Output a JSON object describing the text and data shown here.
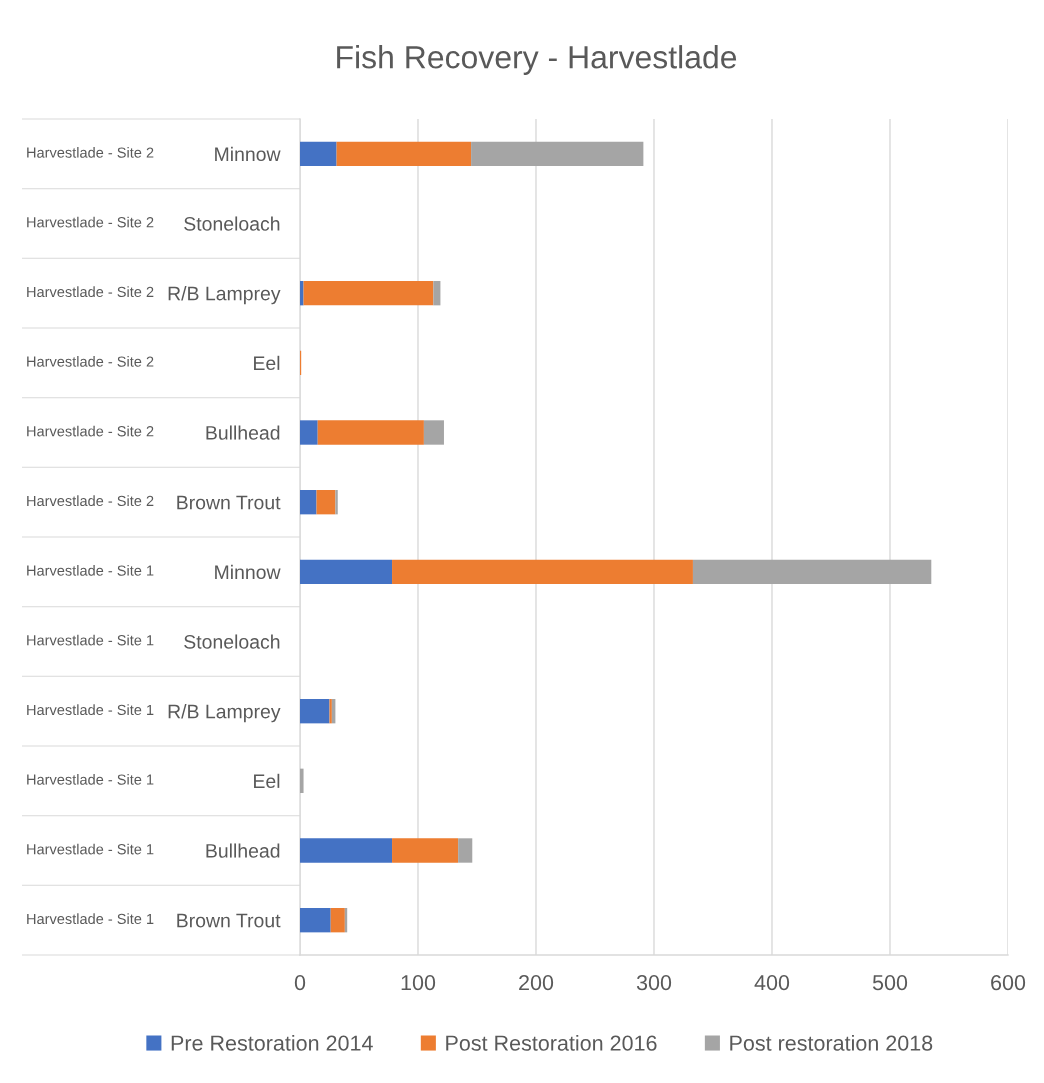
{
  "chart_data": {
    "type": "bar",
    "orientation": "horizontal",
    "stacked": true,
    "title": "Fish Recovery - Harvestlade",
    "categories": [
      "Minnow",
      "Stoneloach",
      "R/B Lamprey",
      "Eel",
      "Bullhead",
      "Brown Trout",
      "Minnow",
      "Stoneloach",
      "R/B Lamprey",
      "Eel",
      "Bullhead",
      "Brown Trout"
    ],
    "y2_categories": [
      "Harvestlade - Site 2",
      "Harvestlade - Site 2",
      "Harvestlade - Site 2",
      "Harvestlade - Site 2",
      "Harvestlade - Site 2",
      "Harvestlade - Site 2",
      "Harvestlade - Site 1",
      "Harvestlade - Site 1",
      "Harvestlade - Site 1",
      "Harvestlade - Site 1",
      "Harvestlade - Site 1",
      "Harvestlade - Site 1"
    ],
    "series": [
      {
        "name": "Pre Restoration 2014",
        "color": "#4472c4",
        "values": [
          31,
          null,
          3,
          null,
          15,
          14,
          78,
          null,
          25,
          null,
          78,
          26
        ]
      },
      {
        "name": "Post Restoration 2016",
        "color": "#ed7d31",
        "values": [
          114,
          null,
          110,
          1,
          90,
          16,
          255,
          null,
          2,
          null,
          56,
          12
        ]
      },
      {
        "name": "Post restoration 2018",
        "color": "#a5a5a5",
        "values": [
          146,
          null,
          6,
          null,
          17,
          2,
          202,
          null,
          3,
          3,
          12,
          2
        ]
      }
    ],
    "xlim": [
      0,
      600
    ],
    "xticks": [
      0,
      100,
      200,
      300,
      400,
      500,
      600
    ],
    "grid": "x",
    "legend": "bottom"
  }
}
